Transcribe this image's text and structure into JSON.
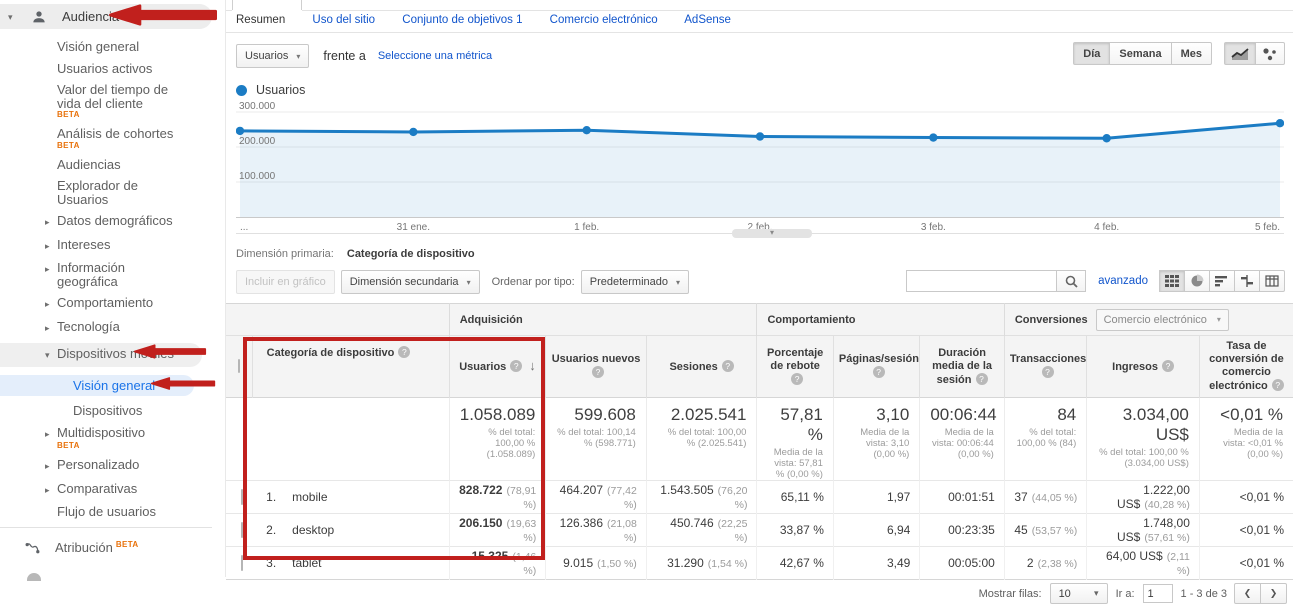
{
  "sidebar": {
    "section_header": {
      "caret": "▾",
      "label": "Audiencia"
    },
    "items": [
      {
        "label": "Visión general",
        "caret": "",
        "beta": ""
      },
      {
        "label": "Usuarios activos",
        "caret": "",
        "beta": ""
      },
      {
        "label": "Valor del tiempo de vida del cliente",
        "caret": "",
        "beta": "BETA"
      },
      {
        "label": "Análisis de cohortes",
        "caret": "",
        "beta": "BETA"
      },
      {
        "label": "Audiencias",
        "caret": "",
        "beta": ""
      },
      {
        "label": "Explorador de Usuarios",
        "caret": "",
        "beta": ""
      },
      {
        "label": "Datos demográficos",
        "caret": "▸",
        "beta": ""
      },
      {
        "label": "Intereses",
        "caret": "▸",
        "beta": ""
      },
      {
        "label": "Información geográfica",
        "caret": "▸",
        "beta": ""
      },
      {
        "label": "Comportamiento",
        "caret": "▸",
        "beta": ""
      },
      {
        "label": "Tecnología",
        "caret": "▸",
        "beta": ""
      },
      {
        "label": "Dispositivos móviles",
        "caret": "▾",
        "beta": ""
      },
      {
        "label": "Visión general",
        "caret": "",
        "beta": ""
      },
      {
        "label": "Dispositivos",
        "caret": "",
        "beta": ""
      },
      {
        "label": "Multidispositivo",
        "caret": "▸",
        "beta": "BETA"
      },
      {
        "label": "Personalizado",
        "caret": "▸",
        "beta": ""
      },
      {
        "label": "Comparativas",
        "caret": "▸",
        "beta": ""
      },
      {
        "label": "Flujo de usuarios",
        "caret": "",
        "beta": ""
      }
    ],
    "attribution": {
      "label": "Atribución",
      "beta": "BETA"
    }
  },
  "tabs": {
    "items": [
      {
        "label": "Resumen"
      },
      {
        "label": "Uso del sitio"
      },
      {
        "label": "Conjunto de objetivos 1"
      },
      {
        "label": "Comercio electrónico"
      },
      {
        "label": "AdSense"
      }
    ]
  },
  "metric_bar": {
    "metric_dropdown": "Usuarios",
    "vs_label": "frente a",
    "select_metric_link": "Seleccione una métrica",
    "granularity": [
      {
        "label": "Día"
      },
      {
        "label": "Semana"
      },
      {
        "label": "Mes"
      }
    ],
    "selected_granularity": "Día"
  },
  "chart_data": {
    "type": "line",
    "title": "Usuarios",
    "x": [
      "...",
      "31 ene.",
      "1 feb.",
      "2 feb.",
      "3 feb.",
      "4 feb.",
      "5 feb."
    ],
    "series": [
      {
        "name": "Usuarios",
        "color": "#1b7cc4",
        "values": [
          246000,
          243000,
          248000,
          230000,
          227000,
          225000,
          268000
        ]
      }
    ],
    "ylim": [
      0,
      300000
    ],
    "yticks": [
      {
        "label": "300.000",
        "value": 300000
      },
      {
        "label": "200.000",
        "value": 200000
      },
      {
        "label": "100.000",
        "value": 100000
      }
    ],
    "legend": {
      "position": "top-left"
    },
    "grid": true
  },
  "dimension_bar": {
    "label": "Dimensión primaria:",
    "value": "Categoría de dispositivo"
  },
  "toolbar": {
    "plot_button": "Incluir en gráfico",
    "secondary_dimension": "Dimensión secundaria",
    "sort_label": "Ordenar por tipo:",
    "sort_value": "Predeterminado",
    "advanced_link": "avanzado"
  },
  "table": {
    "groups": {
      "acquisition": "Adquisición",
      "behavior": "Comportamiento",
      "conversions": "Conversiones",
      "conversions_selector": "Comercio electrónico"
    },
    "columns": {
      "device": "Categoría de dispositivo",
      "users": "Usuarios",
      "new_users": "Usuarios nuevos",
      "sessions": "Sesiones",
      "bounce": "Porcentaje de rebote",
      "pages": "Páginas/sesión",
      "duration": "Duración media de la sesión",
      "transactions": "Transacciones",
      "revenue": "Ingresos",
      "conv_rate": "Tasa de conversión de comercio electrónico"
    },
    "totals": {
      "users": "1.058.089",
      "users_sub": "% del total: 100,00 % (1.058.089)",
      "new_users": "599.608",
      "new_users_sub": "% del total: 100,14 % (598.771)",
      "sessions": "2.025.541",
      "sessions_sub": "% del total: 100,00 % (2.025.541)",
      "bounce": "57,81 %",
      "bounce_sub": "Media de la vista: 57,81 % (0,00 %)",
      "pages": "3,10",
      "pages_sub": "Media de la vista: 3,10 (0,00 %)",
      "duration": "00:06:44",
      "duration_sub": "Media de la vista: 00:06:44 (0,00 %)",
      "transactions": "84",
      "transactions_sub": "% del total: 100,00 % (84)",
      "revenue": "3.034,00 US$",
      "revenue_sub": "% del total: 100,00 % (3.034,00 US$)",
      "conv_rate": "<0,01 %",
      "conv_rate_sub": "Media de la vista: <0,01 % (0,00 %)"
    },
    "rows": [
      {
        "num": "1.",
        "label": "mobile",
        "users": "828.722",
        "users_pct": "(78,91 %)",
        "new_users": "464.207",
        "new_users_pct": "(77,42 %)",
        "sessions": "1.543.505",
        "sessions_pct": "(76,20 %)",
        "bounce": "65,11 %",
        "pages": "1,97",
        "duration": "00:01:51",
        "transactions": "37",
        "transactions_pct": "(44,05 %)",
        "revenue": "1.222,00 US$",
        "revenue_pct": "(40,28 %)",
        "conv_rate": "<0,01 %"
      },
      {
        "num": "2.",
        "label": "desktop",
        "users": "206.150",
        "users_pct": "(19,63 %)",
        "new_users": "126.386",
        "new_users_pct": "(21,08 %)",
        "sessions": "450.746",
        "sessions_pct": "(22,25 %)",
        "bounce": "33,87 %",
        "pages": "6,94",
        "duration": "00:23:35",
        "transactions": "45",
        "transactions_pct": "(53,57 %)",
        "revenue": "1.748,00 US$",
        "revenue_pct": "(57,61 %)",
        "conv_rate": "<0,01 %"
      },
      {
        "num": "3.",
        "label": "tablet",
        "users": "15.325",
        "users_pct": "(1,46 %)",
        "new_users": "9.015",
        "new_users_pct": "(1,50 %)",
        "sessions": "31.290",
        "sessions_pct": "(1,54 %)",
        "bounce": "42,67 %",
        "pages": "3,49",
        "duration": "00:05:00",
        "transactions": "2",
        "transactions_pct": "(2,38 %)",
        "revenue": "64,00 US$",
        "revenue_pct": "(2,11 %)",
        "conv_rate": "<0,01 %"
      }
    ]
  },
  "pagination": {
    "rows_label": "Mostrar filas:",
    "rows_value": "10",
    "goto_label": "Ir a:",
    "goto_value": "1",
    "range": "1 - 3 de 3",
    "prev": "❮",
    "next": "❯"
  },
  "annotations": {
    "color": "#c1201d"
  }
}
